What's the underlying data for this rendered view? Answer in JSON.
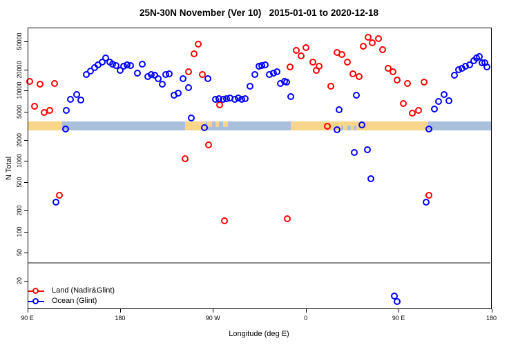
{
  "title": "25N-30N November (Ver 10)   2015-01-01 to 2020-12-18",
  "axes": {
    "x": {
      "label": "Longitude (deg E)",
      "ticks": [
        {
          "pos": 90,
          "label": "90 E"
        },
        {
          "pos": 180,
          "label": "180"
        },
        {
          "pos": 270,
          "label": "90 W"
        },
        {
          "pos": 360,
          "label": "0"
        },
        {
          "pos": 450,
          "label": "90 E"
        },
        {
          "pos": 540,
          "label": "180"
        }
      ]
    },
    "y": {
      "label": "N Total",
      "ticks": [
        20,
        50,
        100,
        200,
        500,
        1000,
        2000,
        5000,
        10000,
        20000,
        50000
      ]
    }
  },
  "legend": {
    "items": [
      {
        "label": "Land (Nadir&Glint)",
        "color": "#ff0000"
      },
      {
        "label": "Ocean (Glint)",
        "color": "#0000ff"
      }
    ]
  },
  "colors": {
    "land_points": "#ff0000",
    "ocean_points": "#0000ff",
    "band_land": "#f7d58a",
    "band_ocean": "#a9bfdc",
    "reference_line": "#888888"
  },
  "chart_data": {
    "type": "scatter",
    "title": "25N-30N November (Ver 10)   2015-01-01 to 2020-12-18",
    "xlabel": "Longitude (deg E)",
    "ylabel": "N Total",
    "x_axis_note": "longitude axis runs 90E eastward wrapping through 180, 90W, 0, 90E to 180 (values 90..540)",
    "y_scale": "log10",
    "ylim": [
      8,
      80000
    ],
    "xlim": [
      90,
      540
    ],
    "grid": false,
    "legend_position": "bottom-left",
    "reference_line": {
      "value": 36
    },
    "surface_band": {
      "value_range": [
        2730,
        3660
      ],
      "segments": [
        {
          "from": 90.0,
          "to": 123.8,
          "type": "land",
          "part": "full"
        },
        {
          "from": 123.8,
          "to": 243.0,
          "type": "ocean",
          "part": "full"
        },
        {
          "from": 243.0,
          "to": 263.1,
          "type": "land",
          "part": "full"
        },
        {
          "from": 263.1,
          "to": 345.5,
          "type": "ocean",
          "part": "full"
        },
        {
          "from": 264.4,
          "to": 269.1,
          "type": "land",
          "part": "top"
        },
        {
          "from": 272.5,
          "to": 275.8,
          "type": "land",
          "part": "top"
        },
        {
          "from": 279.8,
          "to": 284.5,
          "type": "land",
          "part": "top"
        },
        {
          "from": 345.5,
          "to": 478.7,
          "type": "land",
          "part": "full"
        },
        {
          "from": 340.8,
          "to": 345.5,
          "type": "ocean",
          "part": "top"
        },
        {
          "from": 394.4,
          "to": 396.4,
          "type": "ocean",
          "part": "bottom"
        },
        {
          "from": 400.4,
          "to": 403.8,
          "type": "ocean",
          "part": "bottom"
        },
        {
          "from": 406.4,
          "to": 409.1,
          "type": "ocean",
          "part": "bottom"
        },
        {
          "from": 478.7,
          "to": 540.0,
          "type": "ocean",
          "part": "full"
        }
      ]
    },
    "series": [
      {
        "name": "Land (Nadir&Glint)",
        "color": "#ff0000",
        "points": [
          [
            92.7,
            13400
          ],
          [
            102.5,
            12200
          ],
          [
            117.1,
            12400
          ],
          [
            97.1,
            6000
          ],
          [
            106.9,
            4870
          ],
          [
            112.0,
            5130
          ],
          [
            121.3,
            325
          ],
          [
            243.5,
            1080
          ],
          [
            246.9,
            18400
          ],
          [
            251.8,
            32600
          ],
          [
            255.8,
            45400
          ],
          [
            260.2,
            16800
          ],
          [
            266.2,
            1660
          ],
          [
            276.7,
            6240
          ],
          [
            281.3,
            140
          ],
          [
            342.2,
            149
          ],
          [
            345.1,
            21400
          ],
          [
            351.3,
            37100
          ],
          [
            355.8,
            31100
          ],
          [
            360.7,
            40800
          ],
          [
            366.9,
            25400
          ],
          [
            370.7,
            19300
          ],
          [
            373.5,
            21900
          ],
          [
            381.3,
            3100
          ],
          [
            384.7,
            11300
          ],
          [
            390.7,
            34800
          ],
          [
            395.5,
            32300
          ],
          [
            400.7,
            25400
          ],
          [
            406.3,
            17200
          ],
          [
            412.2,
            15500
          ],
          [
            415.8,
            41800
          ],
          [
            420.7,
            56400
          ],
          [
            425.1,
            47100
          ],
          [
            430.7,
            54700
          ],
          [
            435.1,
            38100
          ],
          [
            440.2,
            20600
          ],
          [
            444.7,
            18200
          ],
          [
            448.7,
            13900
          ],
          [
            455.1,
            6470
          ],
          [
            458.9,
            12400
          ],
          [
            463.7,
            4700
          ],
          [
            469.7,
            5230
          ],
          [
            475.1,
            13000
          ],
          [
            479.5,
            322
          ]
        ]
      },
      {
        "name": "Ocean (Glint)",
        "color": "#0000ff",
        "points": [
          [
            118.4,
            260
          ],
          [
            127.3,
            2820
          ],
          [
            128.2,
            5240
          ],
          [
            132.2,
            7510
          ],
          [
            138.0,
            8800
          ],
          [
            142.0,
            7230
          ],
          [
            147.5,
            16800
          ],
          [
            151.5,
            18800
          ],
          [
            155.3,
            21100
          ],
          [
            159.3,
            23100
          ],
          [
            162.7,
            24900
          ],
          [
            166.4,
            28900
          ],
          [
            170.4,
            25400
          ],
          [
            173.1,
            23600
          ],
          [
            176.4,
            22300
          ],
          [
            180.4,
            19300
          ],
          [
            183.8,
            21900
          ],
          [
            187.1,
            23100
          ],
          [
            190.4,
            22300
          ],
          [
            197.1,
            17500
          ],
          [
            202.0,
            23600
          ],
          [
            207.1,
            15600
          ],
          [
            210.4,
            16800
          ],
          [
            213.8,
            16200
          ],
          [
            217.1,
            14700
          ],
          [
            221.5,
            12300
          ],
          [
            224.9,
            16800
          ],
          [
            228.2,
            17100
          ],
          [
            232.9,
            8550
          ],
          [
            236.7,
            9200
          ],
          [
            241.1,
            14700
          ],
          [
            246.9,
            10900
          ],
          [
            249.5,
            4090
          ],
          [
            262.3,
            2920
          ],
          [
            265.5,
            14500
          ],
          [
            272.7,
            7400
          ],
          [
            276.0,
            7600
          ],
          [
            280.0,
            7500
          ],
          [
            283.3,
            7600
          ],
          [
            287.0,
            7800
          ],
          [
            291.7,
            7500
          ],
          [
            294.7,
            7700
          ],
          [
            298.0,
            7500
          ],
          [
            301.3,
            7600
          ],
          [
            306.2,
            11300
          ],
          [
            311.3,
            16800
          ],
          [
            315.1,
            21900
          ],
          [
            318.0,
            22300
          ],
          [
            321.1,
            23100
          ],
          [
            325.1,
            16600
          ],
          [
            329.1,
            17500
          ],
          [
            332.2,
            18400
          ],
          [
            335.8,
            12600
          ],
          [
            339.5,
            13400
          ],
          [
            341.8,
            13200
          ],
          [
            345.5,
            8050
          ],
          [
            390.7,
            2770
          ],
          [
            392.5,
            5320
          ],
          [
            407.3,
            1300
          ],
          [
            409.5,
            8550
          ],
          [
            414.7,
            3210
          ],
          [
            420.0,
            1420
          ],
          [
            423.5,
            558
          ],
          [
            446.2,
            12
          ],
          [
            449.1,
            10
          ],
          [
            476.9,
            257
          ],
          [
            479.7,
            2810
          ],
          [
            485.0,
            5450
          ],
          [
            489.0,
            6980
          ],
          [
            494.2,
            8700
          ],
          [
            499.3,
            7100
          ],
          [
            504.7,
            16200
          ],
          [
            508.7,
            19400
          ],
          [
            512.0,
            20700
          ],
          [
            515.3,
            22200
          ],
          [
            519.3,
            23200
          ],
          [
            523.3,
            26000
          ],
          [
            525.7,
            29100
          ],
          [
            528.3,
            29800
          ],
          [
            531.3,
            24800
          ],
          [
            534.0,
            24800
          ],
          [
            536.0,
            21700
          ]
        ]
      }
    ]
  }
}
